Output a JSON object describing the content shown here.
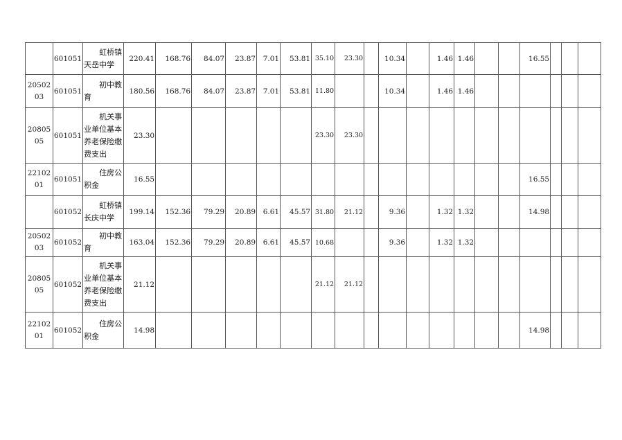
{
  "rows": [
    {
      "code": "",
      "unit": "601051",
      "name": "虹桥镇天岳中学",
      "v": [
        "220.41",
        "168.76",
        "84.07",
        "23.87",
        "7.01",
        "53.81",
        "35.10",
        "23.30",
        "",
        "10.34",
        "",
        "1.46",
        "1.46",
        "",
        "",
        "16.55",
        "",
        "",
        ""
      ]
    },
    {
      "code": "2050203",
      "unit": "601051",
      "name": "初中教育",
      "v": [
        "180.56",
        "168.76",
        "84.07",
        "23.87",
        "7.01",
        "53.81",
        "11.80",
        "",
        "",
        "10.34",
        "",
        "1.46",
        "1.46",
        "",
        "",
        "",
        "",
        "",
        ""
      ]
    },
    {
      "code": "2080505",
      "unit": "601051",
      "name": "机关事业单位基本养老保险缴费支出",
      "v": [
        "23.30",
        "",
        "",
        "",
        "",
        "",
        "23.30",
        "23.30",
        "",
        "",
        "",
        "",
        "",
        "",
        "",
        "",
        "",
        "",
        ""
      ]
    },
    {
      "code": "2210201",
      "unit": "601051",
      "name": "住房公积金",
      "v": [
        "16.55",
        "",
        "",
        "",
        "",
        "",
        "",
        "",
        "",
        "",
        "",
        "",
        "",
        "",
        "",
        "16.55",
        "",
        "",
        ""
      ]
    },
    {
      "code": "",
      "unit": "601052",
      "name": "虹桥镇长庆中学",
      "v": [
        "199.14",
        "152.36",
        "79.29",
        "20.89",
        "6.61",
        "45.57",
        "31.80",
        "21.12",
        "",
        "9.36",
        "",
        "1.32",
        "1.32",
        "",
        "",
        "14.98",
        "",
        "",
        ""
      ]
    },
    {
      "code": "2050203",
      "unit": "601052",
      "name": "初中教育",
      "v": [
        "163.04",
        "152.36",
        "79.29",
        "20.89",
        "6.61",
        "45.57",
        "10.68",
        "",
        "",
        "9.36",
        "",
        "1.32",
        "1.32",
        "",
        "",
        "",
        "",
        "",
        ""
      ]
    },
    {
      "code": "2080505",
      "unit": "601052",
      "name": "机关事业单位基本养老保险缴费支出",
      "v": [
        "21.12",
        "",
        "",
        "",
        "",
        "",
        "21.12",
        "21.12",
        "",
        "",
        "",
        "",
        "",
        "",
        "",
        "",
        "",
        "",
        ""
      ]
    },
    {
      "code": "2210201",
      "unit": "601052",
      "name": "住房公积金",
      "v": [
        "14.98",
        "",
        "",
        "",
        "",
        "",
        "",
        "",
        "",
        "",
        "",
        "",
        "",
        "",
        "",
        "14.98",
        "",
        "",
        ""
      ]
    }
  ]
}
